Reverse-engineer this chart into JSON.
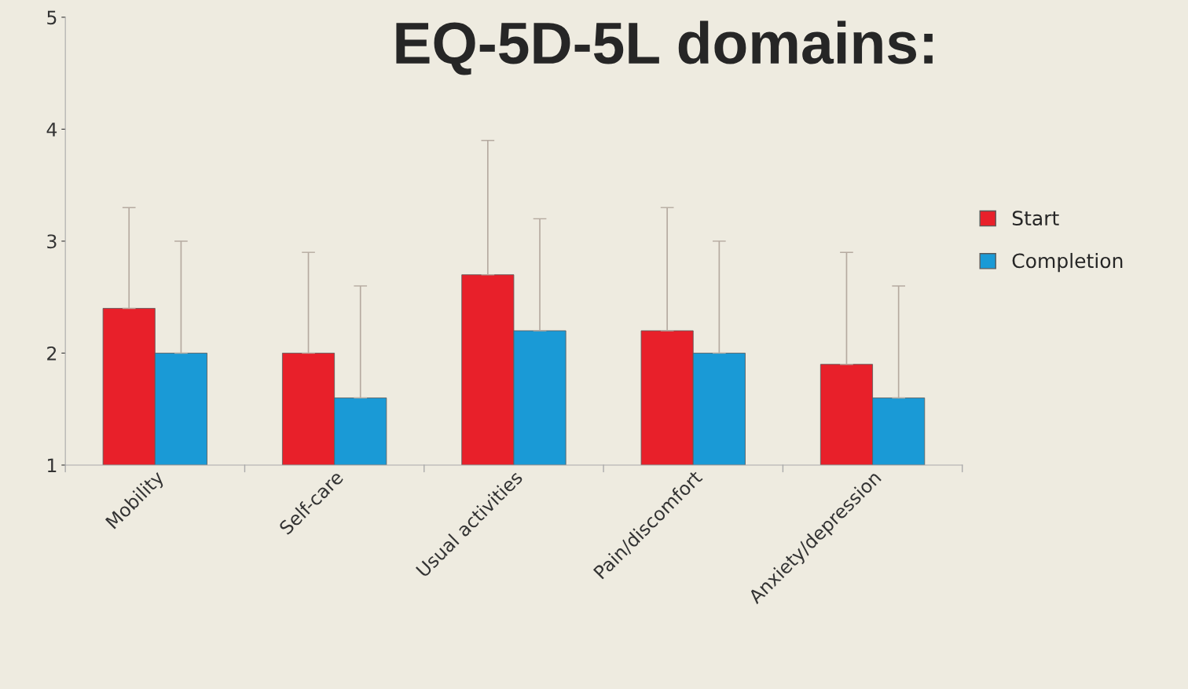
{
  "chart_data": {
    "type": "bar",
    "title": "EQ-5D-5L domains:",
    "categories": [
      "Mobility",
      "Self-care",
      "Usual activities",
      "Pain/discomfort",
      "Anxiety/depression"
    ],
    "series": [
      {
        "name": "Start",
        "color": "#e8202a",
        "values": [
          2.4,
          2.0,
          2.7,
          2.2,
          1.9
        ],
        "errors": [
          [
            2.4,
            3.3
          ],
          [
            2.0,
            2.9
          ],
          [
            2.7,
            3.9
          ],
          [
            2.2,
            3.3
          ],
          [
            1.9,
            2.9
          ]
        ]
      },
      {
        "name": "Completion",
        "color": "#1a9ad6",
        "values": [
          2.0,
          1.6,
          2.2,
          2.0,
          1.6
        ],
        "errors": [
          [
            2.0,
            3.0
          ],
          [
            1.6,
            2.6
          ],
          [
            2.2,
            3.2
          ],
          [
            2.0,
            3.0
          ],
          [
            1.6,
            2.6
          ]
        ]
      }
    ],
    "ylim": [
      1,
      5
    ],
    "yticks": [
      1,
      2,
      3,
      4,
      5
    ],
    "grid": false,
    "legend": "right"
  }
}
